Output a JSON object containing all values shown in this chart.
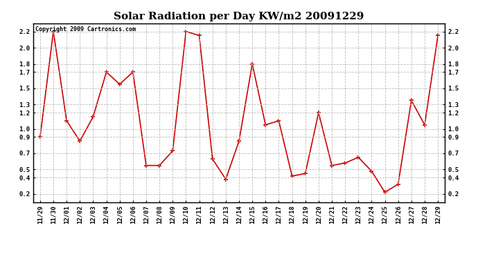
{
  "title": "Solar Radiation per Day KW/m2 20091229",
  "copyright": "Copyright 2009 Cartronics.com",
  "x_labels": [
    "11/29",
    "11/30",
    "12/01",
    "12/02",
    "12/03",
    "12/04",
    "12/05",
    "12/06",
    "12/07",
    "12/08",
    "12/09",
    "12/10",
    "12/11",
    "12/12",
    "12/13",
    "12/14",
    "12/15",
    "12/16",
    "12/17",
    "12/18",
    "12/19",
    "12/20",
    "12/21",
    "12/22",
    "12/23",
    "12/24",
    "12/25",
    "12/26",
    "12/27",
    "12/28",
    "12/29"
  ],
  "y_values": [
    0.9,
    2.2,
    1.1,
    0.85,
    1.15,
    1.7,
    1.55,
    1.7,
    0.55,
    0.55,
    0.73,
    2.2,
    2.15,
    0.63,
    0.38,
    0.85,
    1.8,
    1.05,
    1.1,
    0.42,
    0.45,
    1.2,
    0.55,
    0.58,
    0.65,
    0.48,
    0.22,
    0.32,
    1.35,
    1.05,
    2.15
  ],
  "line_color": "#cc0000",
  "marker": "+",
  "marker_size": 5,
  "line_width": 1.2,
  "ylim": [
    0.1,
    2.3
  ],
  "yticks": [
    0.2,
    0.4,
    0.5,
    0.7,
    0.9,
    1.0,
    1.2,
    1.3,
    1.5,
    1.7,
    1.8,
    2.0,
    2.2
  ],
  "grid_color": "#bbbbbb",
  "grid_linestyle": "--",
  "background_color": "#ffffff",
  "title_fontsize": 11,
  "tick_fontsize": 6.5,
  "copyright_fontsize": 6
}
